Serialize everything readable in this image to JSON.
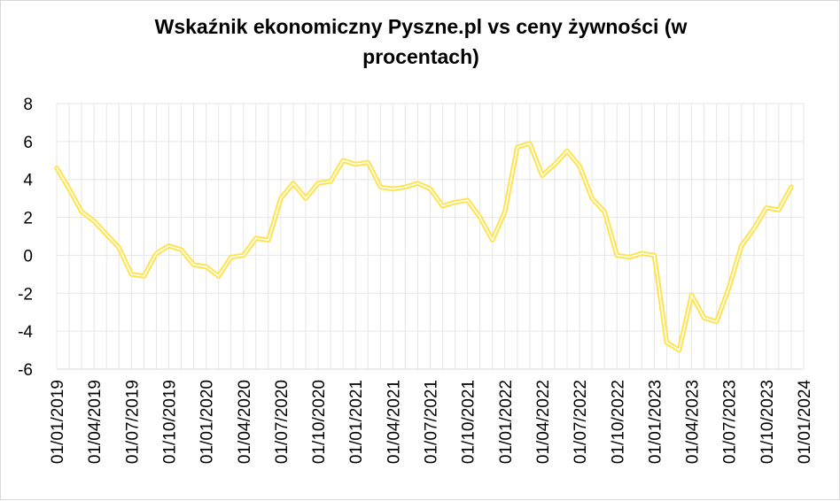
{
  "chart_data": {
    "type": "line",
    "title_line1": "Wskaźnik ekonomiczny Pyszne.pl vs ceny żywności (w",
    "title_line2": "procentach)",
    "xlabel": "",
    "ylabel": "",
    "ylim": [
      -6,
      8
    ],
    "yticks": [
      "8",
      "6",
      "4",
      "2",
      "0",
      "-2",
      "-4",
      "-6"
    ],
    "xtick_labels": [
      "01/01/2019",
      "01/04/2019",
      "01/07/2019",
      "01/10/2019",
      "01/01/2020",
      "01/04/2020",
      "01/07/2020",
      "01/10/2020",
      "01/01/2021",
      "01/04/2021",
      "01/07/2021",
      "01/10/2021",
      "01/01/2022",
      "01/04/2022",
      "01/07/2022",
      "01/10/2022",
      "01/01/2023",
      "01/04/2023",
      "01/07/2023",
      "01/10/2023",
      "01/01/2024"
    ],
    "grid": true,
    "legend": "none",
    "x_start": "2019-01",
    "x_end": "2024-01",
    "series": [
      {
        "color": "#ffe34d",
        "x": [
          "2019-01",
          "2019-02",
          "2019-03",
          "2019-04",
          "2019-05",
          "2019-06",
          "2019-07",
          "2019-08",
          "2019-09",
          "2019-10",
          "2019-11",
          "2019-12",
          "2020-01",
          "2020-02",
          "2020-03",
          "2020-04",
          "2020-05",
          "2020-06",
          "2020-07",
          "2020-08",
          "2020-09",
          "2020-10",
          "2020-11",
          "2020-12",
          "2021-01",
          "2021-02",
          "2021-03",
          "2021-04",
          "2021-05",
          "2021-06",
          "2021-07",
          "2021-08",
          "2021-09",
          "2021-10",
          "2021-11",
          "2021-12",
          "2022-01",
          "2022-02",
          "2022-03",
          "2022-04",
          "2022-05",
          "2022-06",
          "2022-07",
          "2022-08",
          "2022-09",
          "2022-10",
          "2022-11",
          "2022-12",
          "2023-01",
          "2023-02",
          "2023-03",
          "2023-04",
          "2023-05",
          "2023-06",
          "2023-07",
          "2023-08",
          "2023-09",
          "2023-10",
          "2023-11",
          "2023-12"
        ],
        "values": [
          4.6,
          3.5,
          2.3,
          1.8,
          1.1,
          0.4,
          -1.0,
          -1.1,
          0.1,
          0.5,
          0.3,
          -0.5,
          -0.6,
          -1.1,
          -0.1,
          0.0,
          0.9,
          0.8,
          3.0,
          3.8,
          3.0,
          3.8,
          3.9,
          5.0,
          4.8,
          4.9,
          3.6,
          3.5,
          3.6,
          3.8,
          3.5,
          2.6,
          2.8,
          2.9,
          2.0,
          0.8,
          2.3,
          5.7,
          5.9,
          4.2,
          4.8,
          5.5,
          4.7,
          3.0,
          2.3,
          0.0,
          -0.1,
          0.1,
          0.0,
          -4.6,
          -5.0,
          -2.1,
          -3.3,
          -3.5,
          -1.7,
          0.5,
          1.4,
          2.5,
          2.4,
          3.6
        ]
      }
    ]
  }
}
